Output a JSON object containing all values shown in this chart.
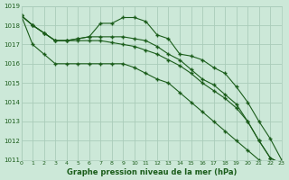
{
  "title": "Graphe pression niveau de la mer (hPa)",
  "background_color": "#cce8d8",
  "grid_color": "#aaccba",
  "line_color": "#1a5c1a",
  "x": [
    0,
    1,
    2,
    3,
    4,
    5,
    6,
    7,
    8,
    9,
    10,
    11,
    12,
    13,
    14,
    15,
    16,
    17,
    18,
    19,
    20,
    21,
    22,
    23
  ],
  "series": [
    [
      1018.5,
      1018.0,
      1017.6,
      1017.2,
      1017.2,
      1017.3,
      1017.4,
      1018.1,
      1018.1,
      1018.4,
      1018.4,
      1018.2,
      1017.5,
      1017.3,
      1016.5,
      1016.4,
      1016.2,
      1015.8,
      1015.5,
      1014.8,
      1014.0,
      1013.0,
      1012.1,
      1011.0
    ],
    [
      1018.5,
      1018.0,
      1017.6,
      1017.2,
      1017.2,
      1017.3,
      1017.4,
      1017.4,
      1017.4,
      1017.4,
      1017.3,
      1017.2,
      1016.9,
      1016.5,
      1016.2,
      1015.7,
      1015.2,
      1014.9,
      1014.4,
      1013.9,
      1013.0,
      1012.0,
      1011.1,
      1010.8
    ],
    [
      1018.5,
      1018.0,
      1017.6,
      1017.2,
      1017.2,
      1017.2,
      1017.2,
      1017.2,
      1017.1,
      1017.0,
      1016.9,
      1016.7,
      1016.5,
      1016.2,
      1015.9,
      1015.5,
      1015.0,
      1014.6,
      1014.2,
      1013.7,
      1013.0,
      1012.0,
      1011.1,
      1010.8
    ],
    [
      1018.5,
      1017.0,
      1016.5,
      1016.0,
      1016.0,
      1016.0,
      1016.0,
      1016.0,
      1016.0,
      1016.0,
      1015.8,
      1015.5,
      1015.2,
      1015.0,
      1014.5,
      1014.0,
      1013.5,
      1013.0,
      1012.5,
      1012.0,
      1011.5,
      1011.0,
      1010.5,
      1010.8
    ]
  ],
  "ylim": [
    1011,
    1019
  ],
  "yticks": [
    1011,
    1012,
    1013,
    1014,
    1015,
    1016,
    1017,
    1018,
    1019
  ],
  "xlim": [
    0,
    23
  ],
  "xticks": [
    0,
    1,
    2,
    3,
    4,
    5,
    6,
    7,
    8,
    9,
    10,
    11,
    12,
    13,
    14,
    15,
    16,
    17,
    18,
    19,
    20,
    21,
    22,
    23
  ],
  "figsize": [
    3.2,
    2.0
  ],
  "dpi": 100
}
